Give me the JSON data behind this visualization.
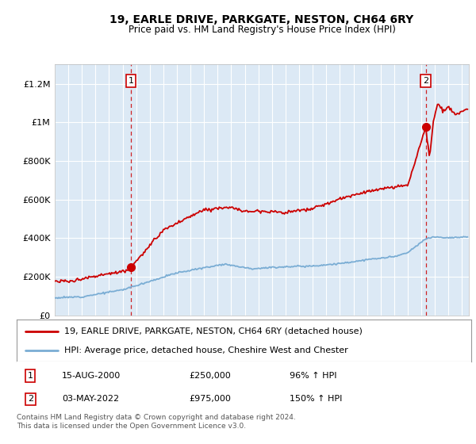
{
  "title": "19, EARLE DRIVE, PARKGATE, NESTON, CH64 6RY",
  "subtitle": "Price paid vs. HM Land Registry's House Price Index (HPI)",
  "legend_line1": "19, EARLE DRIVE, PARKGATE, NESTON, CH64 6RY (detached house)",
  "legend_line2": "HPI: Average price, detached house, Cheshire West and Chester",
  "annotation1_date": "15-AUG-2000",
  "annotation1_price": "£250,000",
  "annotation1_hpi": "96% ↑ HPI",
  "annotation2_date": "03-MAY-2022",
  "annotation2_price": "£975,000",
  "annotation2_hpi": "150% ↑ HPI",
  "footer": "Contains HM Land Registry data © Crown copyright and database right 2024.\nThis data is licensed under the Open Government Licence v3.0.",
  "plot_bg_color": "#dce9f5",
  "grid_color": "#ffffff",
  "red_color": "#cc0000",
  "blue_color": "#7aadd4",
  "ylim": [
    0,
    1300000
  ],
  "xlim_start": 1995,
  "xlim_end": 2025.5,
  "sale1_x": 2000.62,
  "sale1_y": 250000,
  "sale2_x": 2022.33,
  "sale2_y": 975000,
  "yticks": [
    0,
    200000,
    400000,
    600000,
    800000,
    1000000,
    1200000
  ],
  "ytick_labels": [
    "£0",
    "£200K",
    "£400K",
    "£600K",
    "£800K",
    "£1M",
    "£1.2M"
  ]
}
